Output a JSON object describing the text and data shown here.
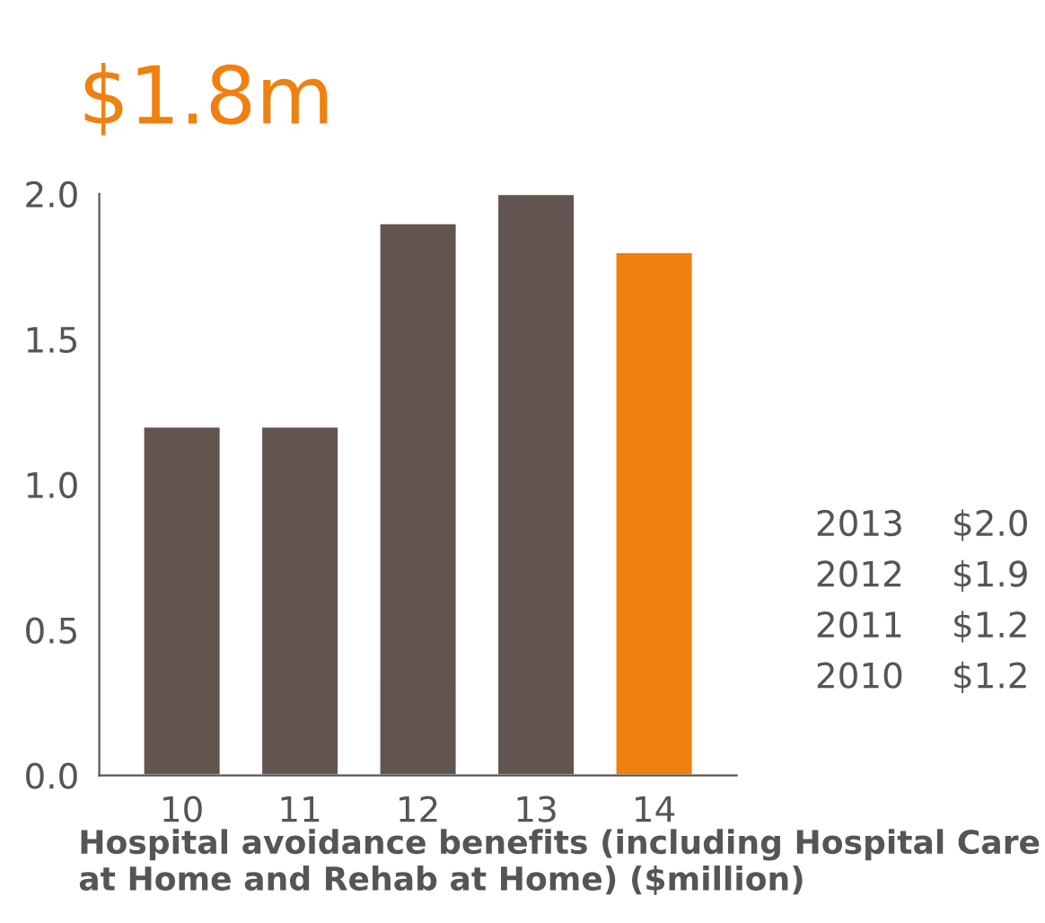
{
  "chart_data": {
    "type": "bar",
    "title": "$1.8m",
    "xlabel": "Hospital avoidance benefits (including Hospital Care at Home and Rehab at Home) ($million)",
    "categories": [
      "10",
      "11",
      "12",
      "13",
      "14"
    ],
    "values": [
      1.2,
      1.2,
      1.9,
      2.0,
      1.8
    ],
    "colors": [
      "#62554f",
      "#62554f",
      "#62554f",
      "#62554f",
      "#f0800f"
    ],
    "ylim": [
      0,
      2.0
    ],
    "yticks": [
      {
        "value": 0,
        "label": "0.0"
      },
      {
        "value": 0.5,
        "label": "0.5"
      },
      {
        "value": 1.0,
        "label": "1.0"
      },
      {
        "value": 1.5,
        "label": "1.5"
      },
      {
        "value": 2.0,
        "label": "2.0"
      }
    ],
    "grid": false,
    "annotations": [
      "2013\t$2.0",
      "2012\t$1.9",
      "2011\t$1.2",
      "2010\t$1.2"
    ]
  }
}
